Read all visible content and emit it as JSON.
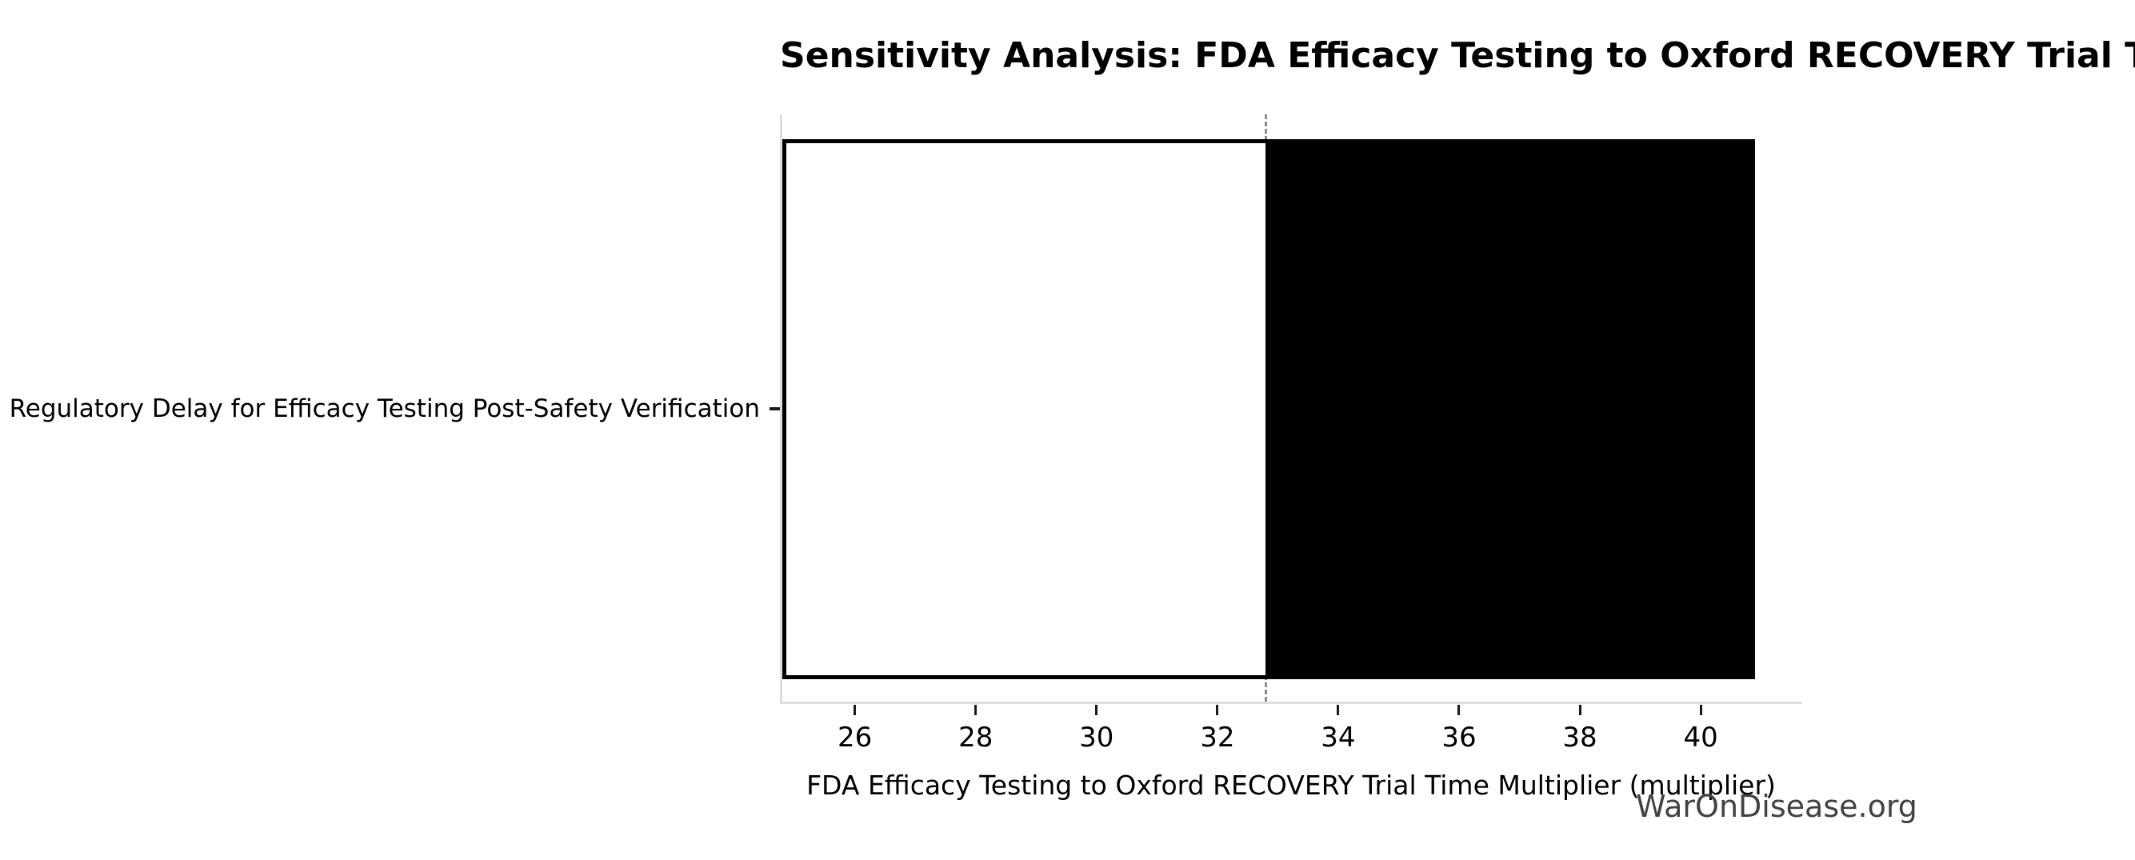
{
  "chart_data": {
    "type": "bar",
    "variant": "tornado-sensitivity",
    "title": "Sensitivity Analysis: FDA Efficacy Testing to Oxford RECOVERY Trial Time Multiplier",
    "xlabel": "FDA Efficacy Testing to Oxford RECOVERY Trial Time Multiplier (multiplier)",
    "categories": [
      "Regulatory Delay for Efficacy Testing Post-Safety Verification"
    ],
    "series": [
      {
        "name": "Regulatory Delay for Efficacy Testing Post-Safety Verification",
        "low": 24.8,
        "base": 32.8,
        "high": 40.9
      }
    ],
    "xlim": [
      24.8,
      41.68
    ],
    "xticks": [
      26,
      28,
      30,
      32,
      34,
      36,
      38,
      40
    ],
    "grid": false,
    "legend": "none",
    "base_line_style": "dashed",
    "colors": {
      "low_segment_fill": "#ffffff",
      "high_segment_fill": "#000000",
      "bar_edge": "#000000",
      "base_line": "#888888",
      "spine": "#dedede",
      "tick": "#1a1a1a"
    }
  },
  "watermark": {
    "text": "WarOnDisease.org",
    "color": "#424242"
  }
}
